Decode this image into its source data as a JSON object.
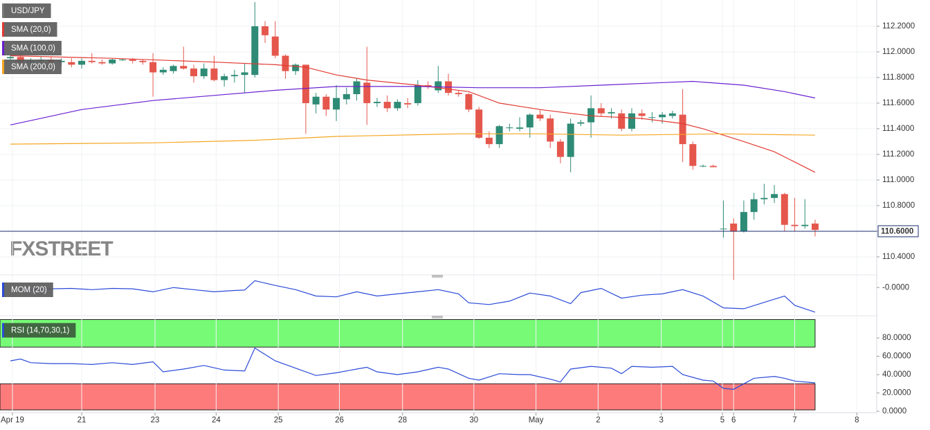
{
  "chart_data": [
    {
      "type": "candlestick",
      "name": "USD/JPY",
      "x": [
        0,
        1,
        2,
        3,
        4,
        5,
        6,
        7,
        8,
        9,
        10,
        11,
        12,
        13,
        14,
        15,
        16,
        17,
        18,
        19,
        20,
        21,
        22,
        23,
        24,
        25,
        26,
        27,
        28,
        29,
        30,
        31,
        32,
        33,
        34,
        35,
        36,
        37,
        38,
        39,
        40,
        41,
        42,
        43,
        44,
        45,
        46,
        47,
        48,
        49,
        50,
        51,
        52,
        53,
        54,
        55,
        56,
        57,
        58,
        59,
        60,
        61,
        62,
        63,
        64,
        65,
        66,
        67,
        68,
        69,
        70,
        71,
        72,
        73,
        74,
        75,
        76,
        77,
        78,
        79
      ],
      "ohlc": [
        [
          111.95,
          111.98,
          111.92,
          111.96
        ],
        [
          111.96,
          111.99,
          111.9,
          111.92
        ],
        [
          111.92,
          111.95,
          111.89,
          111.93
        ],
        [
          111.93,
          111.96,
          111.9,
          111.94
        ],
        [
          111.94,
          111.96,
          111.91,
          111.92
        ],
        [
          111.92,
          111.95,
          111.89,
          111.93
        ],
        [
          111.92,
          111.95,
          111.88,
          111.9
        ],
        [
          111.9,
          111.95,
          111.87,
          111.93
        ],
        [
          111.93,
          111.99,
          111.91,
          111.92
        ],
        [
          111.92,
          111.94,
          111.9,
          111.91
        ],
        [
          111.91,
          111.95,
          111.9,
          111.94
        ],
        [
          111.94,
          111.95,
          111.93,
          111.94
        ],
        [
          111.94,
          111.95,
          111.91,
          111.93
        ],
        [
          111.93,
          111.94,
          111.9,
          111.92
        ],
        [
          111.92,
          111.99,
          111.65,
          111.84
        ],
        [
          111.84,
          111.88,
          111.82,
          111.86
        ],
        [
          111.85,
          111.9,
          111.83,
          111.89
        ],
        [
          111.89,
          112.04,
          111.86,
          111.87
        ],
        [
          111.87,
          111.9,
          111.76,
          111.81
        ],
        [
          111.81,
          111.91,
          111.79,
          111.87
        ],
        [
          111.87,
          111.97,
          111.77,
          111.78
        ],
        [
          111.78,
          111.83,
          111.73,
          111.81
        ],
        [
          111.81,
          111.86,
          111.76,
          111.82
        ],
        [
          111.82,
          111.91,
          111.68,
          111.84
        ],
        [
          111.82,
          112.39,
          111.8,
          112.2
        ],
        [
          112.2,
          112.24,
          112.07,
          112.13
        ],
        [
          112.12,
          112.24,
          111.95,
          111.97
        ],
        [
          111.97,
          111.98,
          111.79,
          111.85
        ],
        [
          111.85,
          111.91,
          111.82,
          111.9
        ],
        [
          111.9,
          111.9,
          111.36,
          111.6
        ],
        [
          111.59,
          111.68,
          111.52,
          111.65
        ],
        [
          111.65,
          111.67,
          111.5,
          111.55
        ],
        [
          111.55,
          111.74,
          111.46,
          111.64
        ],
        [
          111.63,
          111.72,
          111.59,
          111.67
        ],
        [
          111.67,
          111.79,
          111.62,
          111.77
        ],
        [
          111.76,
          112.04,
          111.43,
          111.6
        ],
        [
          111.6,
          111.64,
          111.57,
          111.61
        ],
        [
          111.61,
          111.66,
          111.53,
          111.56
        ],
        [
          111.56,
          111.63,
          111.54,
          111.61
        ],
        [
          111.6,
          111.64,
          111.56,
          111.59
        ],
        [
          111.6,
          111.78,
          111.58,
          111.74
        ],
        [
          111.74,
          111.77,
          111.71,
          111.73
        ],
        [
          111.7,
          111.89,
          111.68,
          111.77
        ],
        [
          111.77,
          111.83,
          111.66,
          111.68
        ],
        [
          111.68,
          111.7,
          111.65,
          111.67
        ],
        [
          111.67,
          111.68,
          111.53,
          111.55
        ],
        [
          111.55,
          111.57,
          111.32,
          111.33
        ],
        [
          111.33,
          111.38,
          111.25,
          111.28
        ],
        [
          111.28,
          111.43,
          111.25,
          111.42
        ],
        [
          111.41,
          111.44,
          111.38,
          111.41
        ],
        [
          111.4,
          111.49,
          111.38,
          111.41
        ],
        [
          111.41,
          111.52,
          111.33,
          111.51
        ],
        [
          111.51,
          111.55,
          111.46,
          111.48
        ],
        [
          111.48,
          111.51,
          111.25,
          111.3
        ],
        [
          111.3,
          111.32,
          111.13,
          111.18
        ],
        [
          111.18,
          111.48,
          111.06,
          111.44
        ],
        [
          111.44,
          111.47,
          111.42,
          111.45
        ],
        [
          111.45,
          111.66,
          111.33,
          111.56
        ],
        [
          111.56,
          111.6,
          111.5,
          111.52
        ],
        [
          111.52,
          111.56,
          111.48,
          111.53
        ],
        [
          111.52,
          111.55,
          111.38,
          111.4
        ],
        [
          111.4,
          111.56,
          111.38,
          111.52
        ],
        [
          111.52,
          111.55,
          111.47,
          111.5
        ],
        [
          111.49,
          111.53,
          111.45,
          111.49
        ],
        [
          111.49,
          111.53,
          111.44,
          111.51
        ],
        [
          111.5,
          111.54,
          111.48,
          111.52
        ],
        [
          111.51,
          111.71,
          111.14,
          111.28
        ],
        [
          111.28,
          111.3,
          111.08,
          111.11
        ],
        [
          111.11,
          111.12,
          111.1,
          111.11
        ],
        [
          111.11,
          111.12,
          111.1,
          111.1
        ],
        [
          110.62,
          110.84,
          110.55,
          110.62
        ],
        [
          110.66,
          110.7,
          110.22,
          110.6
        ],
        [
          110.6,
          110.84,
          110.59,
          110.75
        ],
        [
          110.75,
          110.9,
          110.69,
          110.85
        ],
        [
          110.85,
          110.97,
          110.81,
          110.86
        ],
        [
          110.86,
          110.96,
          110.82,
          110.89
        ],
        [
          110.89,
          110.9,
          110.6,
          110.65
        ],
        [
          110.65,
          110.86,
          110.6,
          110.64
        ],
        [
          110.64,
          110.85,
          110.62,
          110.65
        ],
        [
          110.66,
          110.69,
          110.56,
          110.61
        ]
      ],
      "up_color": "#2e8b75",
      "down_color": "#e5574c",
      "series": [
        {
          "name": "SMA (20,0)",
          "color": "#e23a32",
          "x": [
            0,
            10,
            20,
            26,
            29,
            32,
            35,
            40,
            45,
            48,
            52,
            57,
            62,
            66,
            68,
            72,
            75,
            79
          ],
          "values": [
            111.97,
            111.95,
            111.92,
            111.9,
            111.88,
            111.82,
            111.78,
            111.74,
            111.69,
            111.6,
            111.55,
            111.5,
            111.48,
            111.44,
            111.4,
            111.3,
            111.22,
            111.06
          ]
        },
        {
          "name": "SMA (100,0)",
          "color": "#6a1fd1",
          "x": [
            0,
            7,
            14,
            20,
            26,
            32,
            40,
            46,
            52,
            58,
            64,
            67,
            72,
            76,
            79
          ],
          "values": [
            111.43,
            111.55,
            111.62,
            111.66,
            111.7,
            111.73,
            111.73,
            111.72,
            111.72,
            111.74,
            111.76,
            111.77,
            111.74,
            111.69,
            111.64
          ]
        },
        {
          "name": "SMA (200,0)",
          "color": "#f5a623",
          "x": [
            0,
            14,
            24,
            32,
            44,
            52,
            60,
            70,
            79
          ],
          "values": [
            111.28,
            111.29,
            111.31,
            111.34,
            111.36,
            111.36,
            111.35,
            111.36,
            111.35
          ]
        }
      ],
      "price_line": {
        "value": 110.6,
        "label": "110.6000"
      },
      "watermark": "FXSTREET",
      "xlim": [
        -1.02,
        85.05
      ],
      "ylim": [
        110.27,
        112.405
      ],
      "yticks": [
        {
          "value": 110.4,
          "label": "110.4000"
        },
        {
          "value": 110.6,
          "label": "110.6000"
        },
        {
          "value": 110.8,
          "label": "110.8000"
        },
        {
          "value": 111,
          "label": "111.0000"
        },
        {
          "value": 111.2,
          "label": "111.2000"
        },
        {
          "value": 111.4,
          "label": "111.4000"
        },
        {
          "value": 111.6,
          "label": "111.6000"
        },
        {
          "value": 111.8,
          "label": "111.8000"
        },
        {
          "value": 112,
          "label": "112.0000"
        },
        {
          "value": 112.2,
          "label": "112.2000"
        }
      ],
      "grid": true
    },
    {
      "type": "line",
      "series": [
        {
          "name": "MOM (20)",
          "color": "#2a4ad8",
          "x": [
            0,
            2,
            4,
            6,
            8,
            10,
            12,
            14,
            16,
            18,
            20,
            22,
            23,
            24,
            26,
            28,
            30,
            32,
            34,
            36,
            38,
            40,
            42,
            44,
            45,
            47,
            49,
            51,
            53,
            55,
            56,
            58,
            60,
            62,
            64,
            66,
            68,
            70,
            72,
            74,
            76,
            77,
            79
          ],
          "values": [
            0,
            -0.05,
            -0.03,
            -0.02,
            -0.05,
            -0.02,
            -0.03,
            -0.1,
            0,
            -0.05,
            -0.1,
            -0.07,
            -0.06,
            0.16,
            0.05,
            -0.05,
            -0.2,
            -0.22,
            -0.1,
            -0.2,
            -0.15,
            -0.1,
            -0.05,
            -0.15,
            -0.36,
            -0.4,
            -0.32,
            -0.13,
            -0.2,
            -0.38,
            -0.12,
            -0.02,
            -0.25,
            -0.18,
            -0.15,
            -0.05,
            -0.2,
            -0.48,
            -0.5,
            -0.35,
            -0.2,
            -0.42,
            -0.58
          ]
        }
      ],
      "xlim": [
        -1.02,
        85.05
      ],
      "ylim": [
        -0.6,
        0.2
      ],
      "yticks": [
        {
          "value": 0,
          "label": "-0.0000"
        }
      ],
      "grid": false
    },
    {
      "type": "line",
      "series": [
        {
          "name": "RSI (14,70,30,1)",
          "color": "#2a4ad8",
          "x": [
            0,
            1,
            2,
            4,
            6,
            8,
            10,
            12,
            14,
            15,
            17,
            19,
            21,
            23,
            24,
            25,
            26,
            28,
            30,
            32,
            34,
            35,
            36,
            38,
            40,
            42,
            43,
            45,
            46,
            48,
            50,
            51,
            53,
            54,
            55,
            57,
            59,
            60,
            61,
            63,
            65,
            66,
            68,
            69,
            70,
            71,
            72,
            73,
            75,
            76,
            77,
            79
          ],
          "values": [
            55,
            57,
            53,
            52,
            52,
            51,
            53,
            51,
            54,
            43,
            46,
            50,
            45,
            44,
            69,
            62,
            55,
            47,
            39,
            42,
            46,
            48,
            43,
            40,
            43,
            48,
            46,
            36,
            34,
            41,
            40,
            40,
            35,
            32,
            46,
            49,
            47,
            41,
            49,
            48,
            49,
            40,
            34,
            33,
            25,
            24,
            30,
            36,
            38,
            36,
            33,
            31
          ]
        }
      ],
      "zones": [
        {
          "from": 70,
          "to": 100,
          "color": "#77fb77"
        },
        {
          "from": 0,
          "to": 30,
          "color": "#fd7b7b"
        }
      ],
      "xlim": [
        -1.02,
        85.05
      ],
      "ylim": [
        0,
        100
      ],
      "yticks": [
        {
          "value": 0,
          "label": "0.0000"
        },
        {
          "value": 20,
          "label": "20.0000"
        },
        {
          "value": 40,
          "label": "40.0000"
        },
        {
          "value": 60,
          "label": "60.0000"
        },
        {
          "value": 80,
          "label": "80.0000"
        }
      ],
      "xticks": [
        {
          "value": 0.2,
          "label": "Apr 19"
        },
        {
          "value": 7,
          "label": "21"
        },
        {
          "value": 14.2,
          "label": "23"
        },
        {
          "value": 20.2,
          "label": "24"
        },
        {
          "value": 26.3,
          "label": "25"
        },
        {
          "value": 32.3,
          "label": "26"
        },
        {
          "value": 38.5,
          "label": "28"
        },
        {
          "value": 45.5,
          "label": "30"
        },
        {
          "value": 51.6,
          "label": "May"
        },
        {
          "value": 57.7,
          "label": "2"
        },
        {
          "value": 63.9,
          "label": "3"
        },
        {
          "value": 69.9,
          "label": "5"
        },
        {
          "value": 71,
          "label": "6"
        },
        {
          "value": 77,
          "label": "7"
        },
        {
          "value": 83.1,
          "label": "8"
        }
      ],
      "grid": false
    }
  ]
}
